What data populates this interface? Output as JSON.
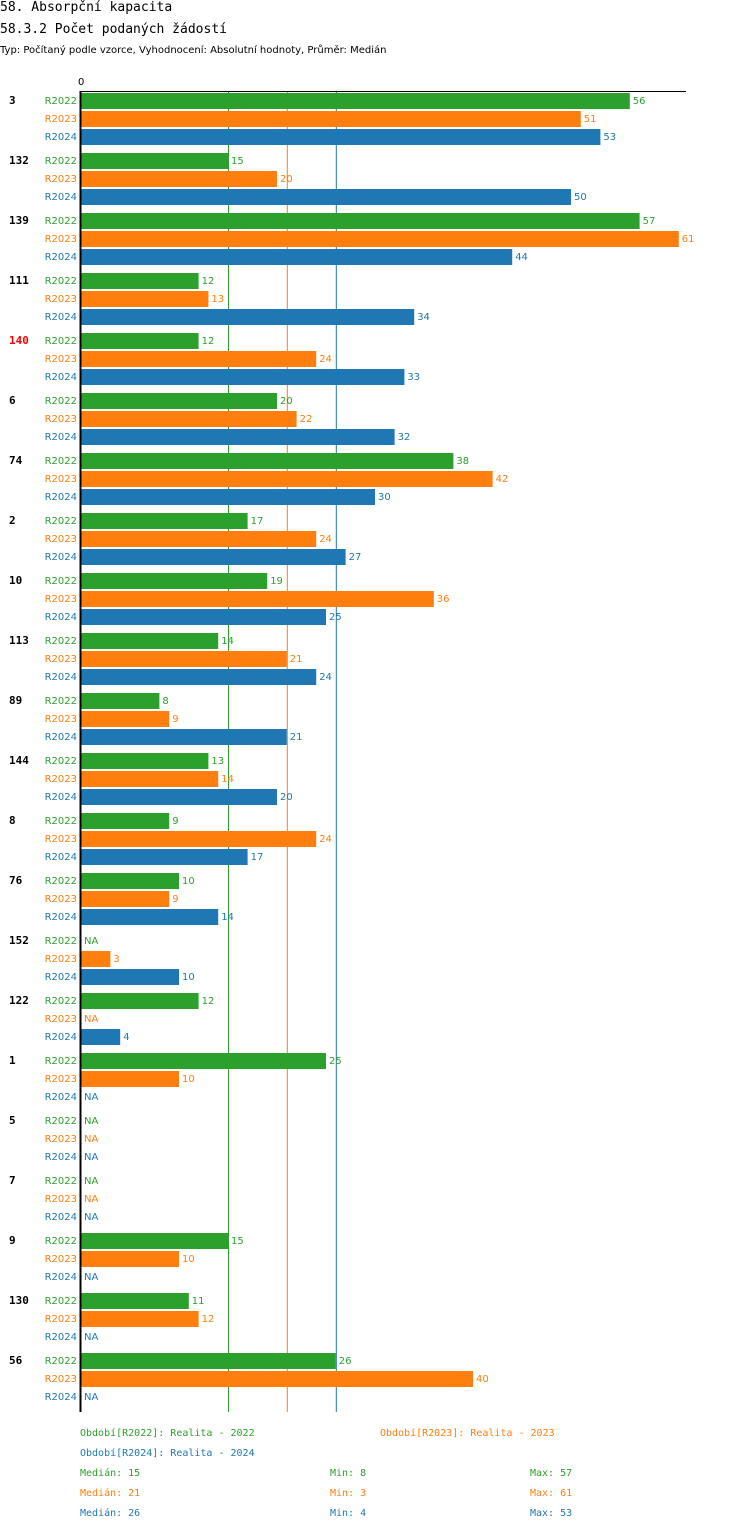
{
  "header": {
    "title": "58. Absorpční kapacita",
    "subtitle": "58.3.2 Počet podaných žádostí",
    "meta": "Typ: Počítaný podle vzorce, Vyhodnocení: Absolutní hodnoty, Průměr: Medián"
  },
  "colors": {
    "R2022": "#2ca02c",
    "R2023": "#ff7f0e",
    "R2024": "#1f77b4",
    "highlight": "#ff0000",
    "axis": "#000000"
  },
  "chart_data": {
    "type": "bar",
    "orientation": "horizontal",
    "xlim": [
      0,
      61
    ],
    "x_tick_labels": [
      "0"
    ],
    "series_names": [
      "R2022",
      "R2023",
      "R2024"
    ],
    "na_label": "NA",
    "categories": [
      "3",
      "132",
      "139",
      "111",
      "140",
      "6",
      "74",
      "2",
      "10",
      "113",
      "89",
      "144",
      "8",
      "76",
      "152",
      "122",
      "1",
      "5",
      "7",
      "9",
      "130",
      "56"
    ],
    "highlighted_category": "140",
    "series": [
      {
        "name": "R2022",
        "values": [
          56,
          15,
          57,
          12,
          12,
          20,
          38,
          17,
          19,
          14,
          8,
          13,
          9,
          10,
          null,
          12,
          25,
          null,
          null,
          15,
          11,
          26
        ]
      },
      {
        "name": "R2023",
        "values": [
          51,
          20,
          61,
          13,
          24,
          22,
          42,
          24,
          36,
          21,
          9,
          14,
          24,
          9,
          3,
          null,
          10,
          null,
          null,
          10,
          12,
          40
        ]
      },
      {
        "name": "R2024",
        "values": [
          53,
          50,
          44,
          34,
          33,
          32,
          30,
          27,
          25,
          24,
          21,
          20,
          17,
          14,
          10,
          4,
          null,
          null,
          null,
          null,
          null,
          null
        ]
      }
    ],
    "reference_lines": [
      {
        "series": "R2022",
        "stat": "median",
        "value": 15
      },
      {
        "series": "R2023",
        "stat": "median",
        "value": 21
      },
      {
        "series": "R2024",
        "stat": "median",
        "value": 26
      }
    ]
  },
  "legend": {
    "R2022": "Období[R2022]: Realita - 2022",
    "R2023": "Období[R2023]: Realita - 2023",
    "R2024": "Období[R2024]: Realita - 2024"
  },
  "stats": [
    {
      "series": "R2022",
      "median": "Medián: 15",
      "min": "Min: 8",
      "max": "Max: 57"
    },
    {
      "series": "R2023",
      "median": "Medián: 21",
      "min": "Min: 3",
      "max": "Max: 61"
    },
    {
      "series": "R2024",
      "median": "Medián: 26",
      "min": "Min: 4",
      "max": "Max: 53"
    }
  ]
}
